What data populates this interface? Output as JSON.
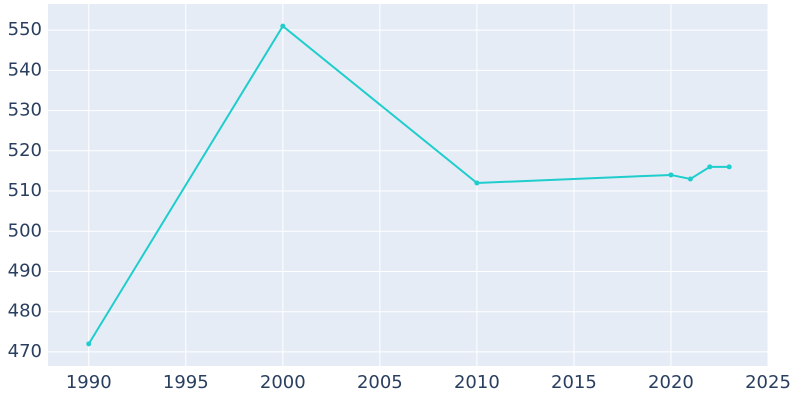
{
  "chart_data": {
    "type": "line",
    "x": [
      1990,
      2000,
      2010,
      2020,
      2021,
      2022,
      2023
    ],
    "values": [
      472,
      551,
      512,
      514,
      513,
      516,
      516
    ],
    "color": "#1fcdcd",
    "xlim": [
      1987.9,
      2025
    ],
    "xticks": [
      1990,
      1995,
      2000,
      2005,
      2010,
      2015,
      2020,
      2025
    ],
    "ylim": [
      466.5,
      556.5
    ],
    "yticks": [
      470,
      480,
      490,
      500,
      510,
      520,
      530,
      540,
      550
    ],
    "grid": true
  }
}
